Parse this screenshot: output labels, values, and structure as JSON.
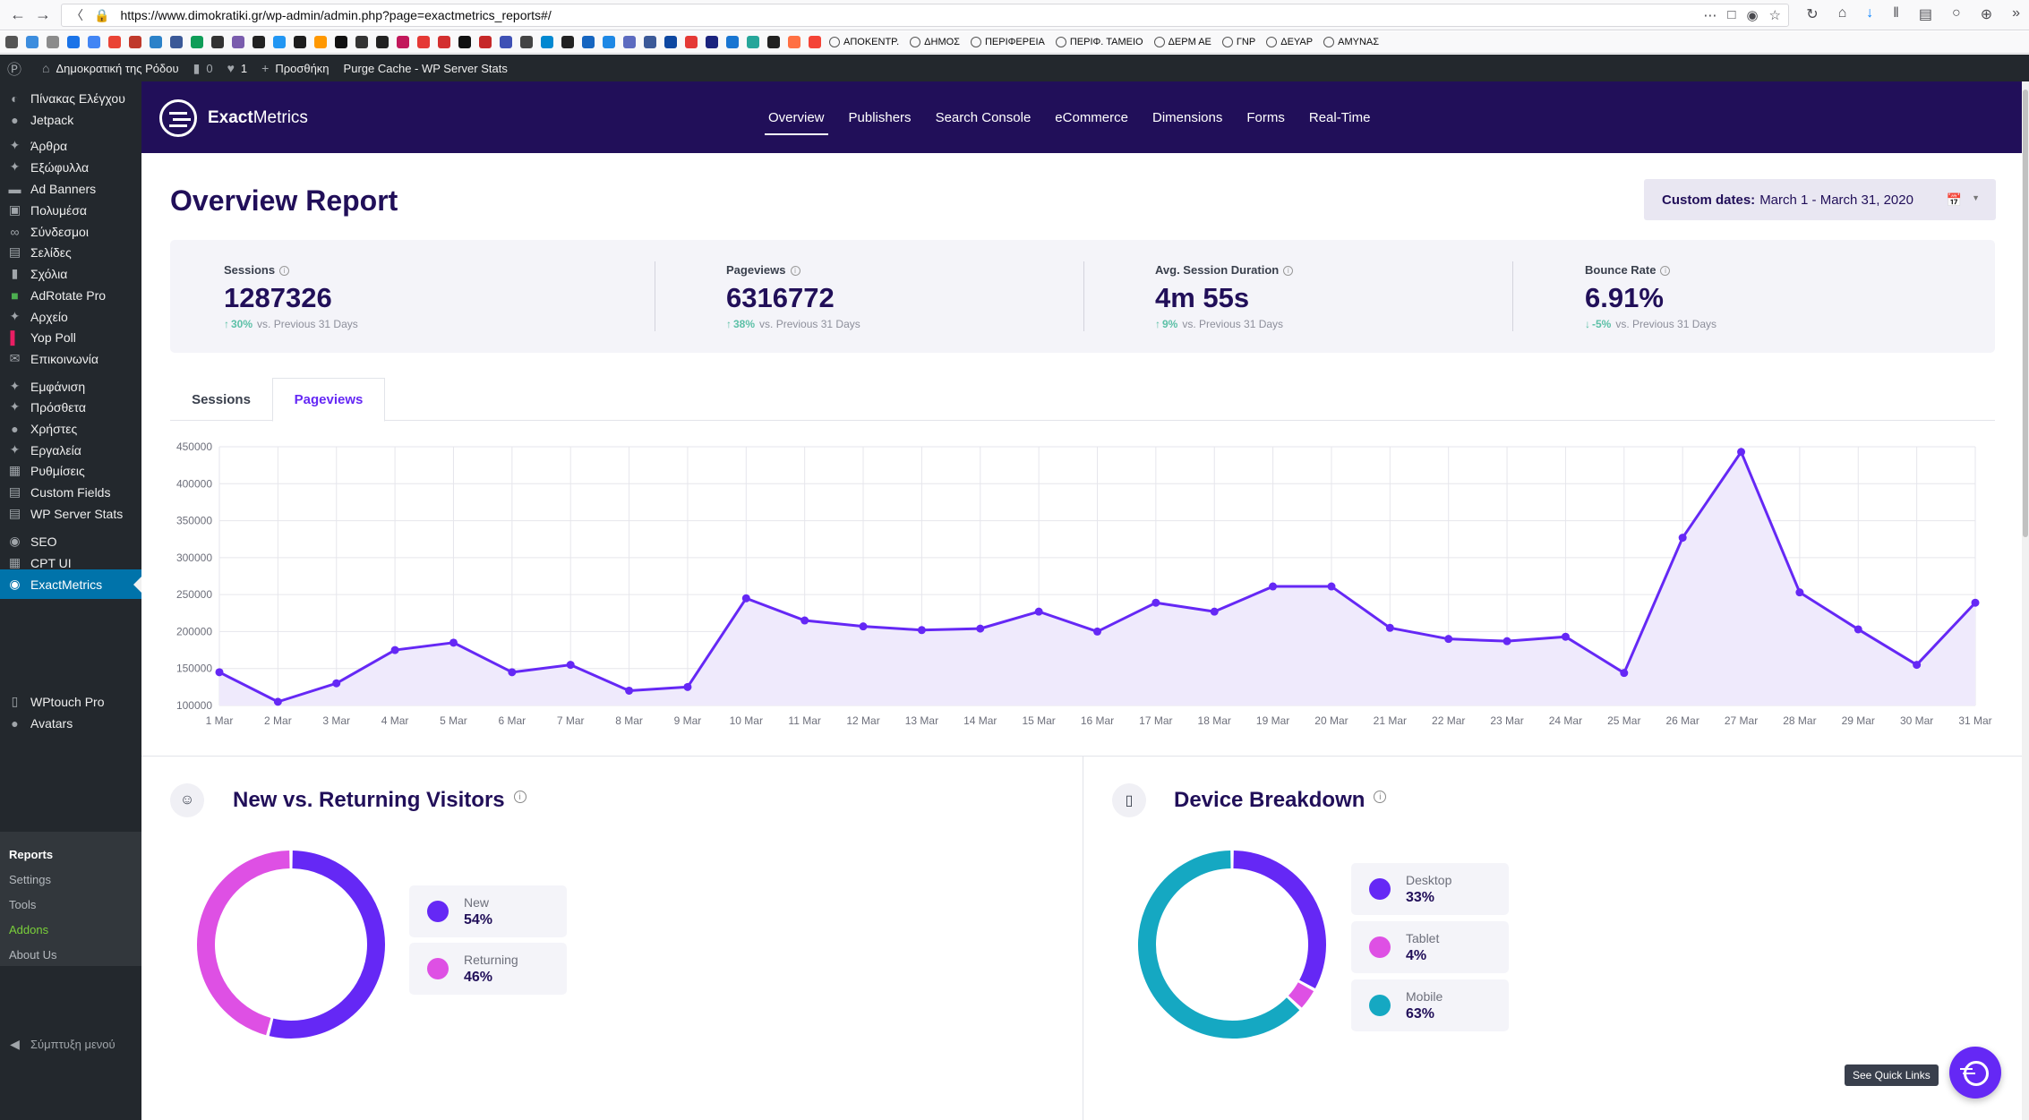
{
  "browser": {
    "url": "https://www.dimokratiki.gr/wp-admin/admin.php?page=exactmetrics_reports#/",
    "bookmark_folders": [
      "ΑΠΟΚΕΝΤΡ.",
      "ΔΗΜΟΣ",
      "ΠΕΡΙΦΕΡΕΙΑ",
      "ΠΕΡΙΦ. ΤΑΜΕΙΟ",
      "ΔΕΡΜ ΑΕ",
      "ΓΝΡ",
      "ΔΕΥΑΡ",
      "ΑΜΥΝΑΣ"
    ],
    "favicon_colors": [
      "#555",
      "#3c8dde",
      "#8b8b8b",
      "#1a73e8",
      "#4285f4",
      "#ea4335",
      "#c0392b",
      "#2c82c9",
      "#3b5998",
      "#0f9d58",
      "#333",
      "#7a5cad",
      "#222",
      "#2196f3",
      "#1e1e1e",
      "#ff9800",
      "#111",
      "#333",
      "#222",
      "#c2185b",
      "#e53935",
      "#d32f2f",
      "#111",
      "#c62828",
      "#3f51b5",
      "#444",
      "#0288d1",
      "#222",
      "#1565c0",
      "#1e88e5",
      "#5c6bc0",
      "#3b5998",
      "#0d47a1",
      "#e53935",
      "#1a237e",
      "#1976d2",
      "#26a69a",
      "#212121",
      "#ff7043",
      "#f44336"
    ]
  },
  "adminbar": {
    "site_name": "Δημοκρατική της Ρόδου",
    "comments_count": "0",
    "likes_count": "1",
    "add_new": "Προσθήκη",
    "purge": "Purge Cache - WP Server Stats"
  },
  "sidebar": {
    "items": [
      {
        "label": "Πίνακας Ελέγχου",
        "icon": "dashboard-icon"
      },
      {
        "label": "Jetpack",
        "icon": "jetpack-icon"
      },
      {
        "label": "Άρθρα",
        "icon": "pin-icon"
      },
      {
        "label": "Εξώφυλλα",
        "icon": "pin-icon"
      },
      {
        "label": "Ad Banners",
        "icon": "banner-icon"
      },
      {
        "label": "Πολυμέσα",
        "icon": "media-icon"
      },
      {
        "label": "Σύνδεσμοι",
        "icon": "link-icon"
      },
      {
        "label": "Σελίδες",
        "icon": "page-icon"
      },
      {
        "label": "Σχόλια",
        "icon": "comment-icon"
      },
      {
        "label": "AdRotate Pro",
        "icon": "adrotate-icon"
      },
      {
        "label": "Αρχείο",
        "icon": "pin-icon"
      },
      {
        "label": "Yop Poll",
        "icon": "poll-icon"
      },
      {
        "label": "Επικοινωνία",
        "icon": "mail-icon"
      },
      {
        "label": "Εμφάνιση",
        "icon": "brush-icon"
      },
      {
        "label": "Πρόσθετα",
        "icon": "plugin-icon"
      },
      {
        "label": "Χρήστες",
        "icon": "user-icon"
      },
      {
        "label": "Εργαλεία",
        "icon": "wrench-icon"
      },
      {
        "label": "Ρυθμίσεις",
        "icon": "settings-icon"
      },
      {
        "label": "Custom Fields",
        "icon": "fields-icon"
      },
      {
        "label": "WP Server Stats",
        "icon": "stats-icon"
      },
      {
        "label": "SEO",
        "icon": "seo-icon"
      },
      {
        "label": "CPT UI",
        "icon": "cpt-icon"
      },
      {
        "label": "ExactMetrics",
        "icon": "exactmetrics-icon"
      },
      {
        "label": "WPtouch Pro",
        "icon": "mobile-icon"
      },
      {
        "label": "Avatars",
        "icon": "avatar-icon"
      }
    ],
    "submenu": [
      "Reports",
      "Settings",
      "Tools",
      "Addons",
      "About Us"
    ],
    "collapse": "Σύμπτυξη μενού"
  },
  "em": {
    "logo_bold": "Exact",
    "logo_light": "Metrics",
    "tabs": [
      "Overview",
      "Publishers",
      "Search Console",
      "eCommerce",
      "Dimensions",
      "Forms",
      "Real-Time"
    ],
    "page_title": "Overview Report",
    "date_label": "Custom dates:",
    "date_value": "March 1 - March 31, 2020"
  },
  "kpis": [
    {
      "label": "Sessions",
      "value": "1287326",
      "change": "30%",
      "direction": "up",
      "compare": "vs. Previous 31 Days"
    },
    {
      "label": "Pageviews",
      "value": "6316772",
      "change": "38%",
      "direction": "up",
      "compare": "vs. Previous 31 Days"
    },
    {
      "label": "Avg. Session Duration",
      "value": "4m 55s",
      "change": "9%",
      "direction": "up",
      "compare": "vs. Previous 31 Days"
    },
    {
      "label": "Bounce Rate",
      "value": "6.91%",
      "change": "-5%",
      "direction": "down",
      "compare": "vs. Previous 31 Days"
    }
  ],
  "chart_tabs": [
    "Sessions",
    "Pageviews"
  ],
  "chart_data": [
    {
      "type": "area",
      "x": [
        "1 Mar",
        "2 Mar",
        "3 Mar",
        "4 Mar",
        "5 Mar",
        "6 Mar",
        "7 Mar",
        "8 Mar",
        "9 Mar",
        "10 Mar",
        "11 Mar",
        "12 Mar",
        "13 Mar",
        "14 Mar",
        "15 Mar",
        "16 Mar",
        "17 Mar",
        "18 Mar",
        "19 Mar",
        "20 Mar",
        "21 Mar",
        "22 Mar",
        "23 Mar",
        "24 Mar",
        "25 Mar",
        "26 Mar",
        "27 Mar",
        "28 Mar",
        "29 Mar",
        "30 Mar",
        "31 Mar"
      ],
      "series": [
        {
          "values": [
            145000,
            105000,
            130000,
            175000,
            185000,
            145000,
            155000,
            120000,
            125000,
            245000,
            215000,
            207000,
            202000,
            204000,
            227000,
            200000,
            239000,
            227000,
            261000,
            261000,
            205000,
            190000,
            187000,
            193000,
            144000,
            327000,
            443000,
            253000,
            203000,
            155000,
            239000
          ]
        }
      ],
      "ylim": [
        100000,
        450000
      ],
      "yticks": [
        "100000",
        "150000",
        "200000",
        "250000",
        "300000",
        "350000",
        "400000",
        "450000"
      ],
      "grid": true,
      "line_color": "#6528f5",
      "fill_color": "#efeafc"
    },
    {
      "type": "pie",
      "title": "New vs. Returning Visitors",
      "labels": [
        "New",
        "Returning"
      ],
      "values": [
        54,
        46
      ],
      "display": [
        "54%",
        "46%"
      ],
      "colors": [
        "#6528f5",
        "#de50e4"
      ]
    },
    {
      "type": "pie",
      "title": "Device Breakdown",
      "labels": [
        "Desktop",
        "Tablet",
        "Mobile"
      ],
      "values": [
        33,
        4,
        63
      ],
      "display": [
        "33%",
        "4%",
        "63%"
      ],
      "colors": [
        "#6528f5",
        "#de50e4",
        "#15a8c2"
      ]
    }
  ],
  "quick_links": "See Quick Links"
}
